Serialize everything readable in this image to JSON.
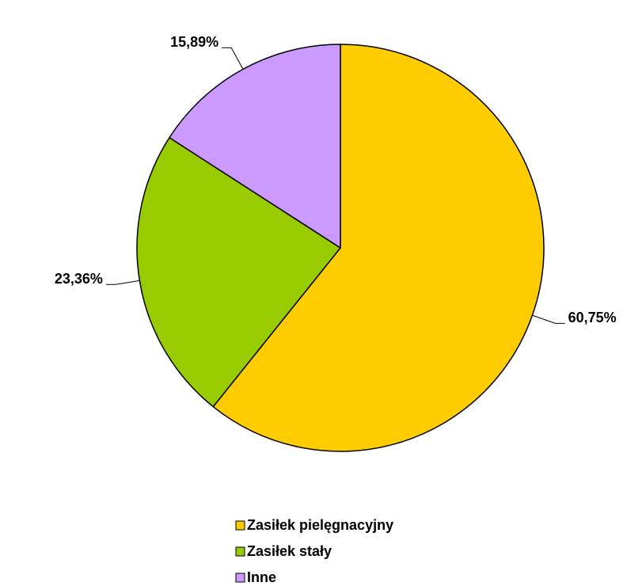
{
  "chart_data": {
    "type": "pie",
    "categories": [
      "Zasiłek pielęgnacyjny",
      "Zasiłek stały",
      "Inne"
    ],
    "values": [
      60.75,
      23.36,
      15.89
    ],
    "value_labels": [
      "60,75%",
      "23,36%",
      "15,89%"
    ],
    "colors": [
      "#ffcc00",
      "#99cc00",
      "#cc99ff"
    ],
    "legend": "bottom"
  }
}
